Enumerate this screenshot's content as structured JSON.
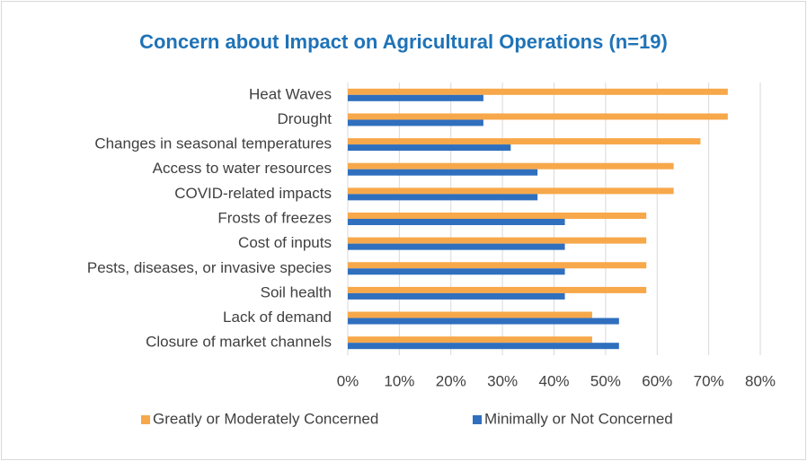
{
  "chart_data": {
    "type": "bar",
    "orientation": "horizontal",
    "title": "Concern about Impact on Agricultural Operations (n=19)",
    "categories": [
      "Heat Waves",
      "Drought",
      "Changes in seasonal temperatures",
      "Access to water resources",
      "COVID-related impacts",
      "Frosts of freezes",
      "Cost of inputs",
      "Pests, diseases, or invasive species",
      "Soil health",
      "Lack of demand",
      "Closure of market channels"
    ],
    "series": [
      {
        "name": "Greatly or Moderately Concerned",
        "color": "#f7a84a",
        "values": [
          73.7,
          73.7,
          68.4,
          63.2,
          63.2,
          57.9,
          57.9,
          57.9,
          57.9,
          47.4,
          47.4
        ]
      },
      {
        "name": "Minimally or Not Concerned",
        "color": "#2f6fbe",
        "values": [
          26.3,
          26.3,
          31.6,
          36.8,
          36.8,
          42.1,
          42.1,
          42.1,
          42.1,
          52.6,
          52.6
        ]
      }
    ],
    "xlim": [
      0,
      80
    ],
    "xticks": [
      {
        "value": 0,
        "label": "0%"
      },
      {
        "value": 10,
        "label": "10%"
      },
      {
        "value": 20,
        "label": "20%"
      },
      {
        "value": 30,
        "label": "30%"
      },
      {
        "value": 40,
        "label": "40%"
      },
      {
        "value": 50,
        "label": "50%"
      },
      {
        "value": 60,
        "label": "60%"
      },
      {
        "value": 70,
        "label": "70%"
      },
      {
        "value": 80,
        "label": "80%"
      }
    ],
    "grid": true,
    "legend": "bottom"
  }
}
